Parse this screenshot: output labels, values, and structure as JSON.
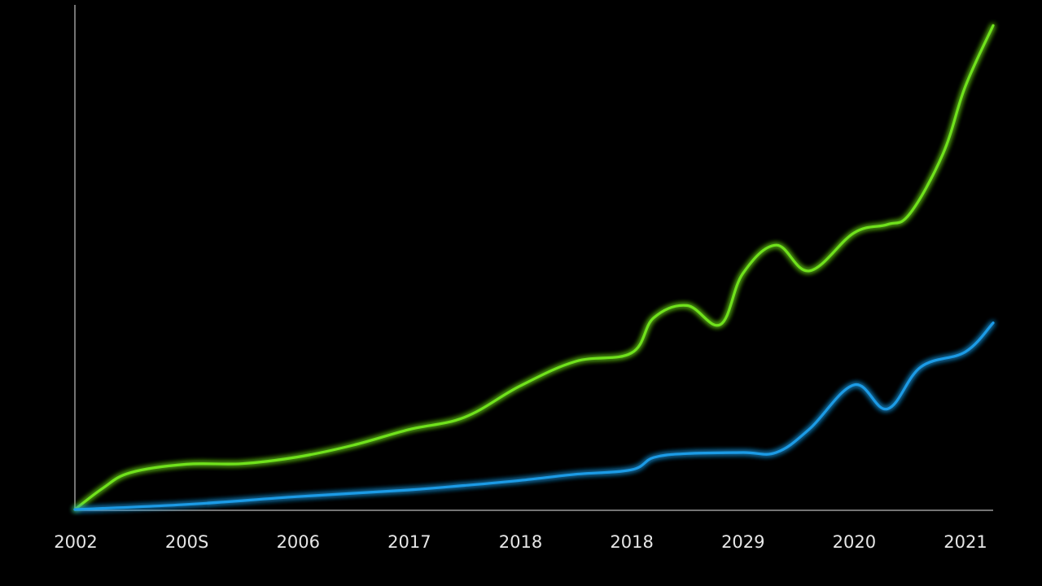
{
  "chart_data": {
    "type": "line",
    "categories": [
      "2002",
      "200S",
      "2006",
      "2017",
      "2018",
      "2018",
      "2029",
      "2020",
      "2021"
    ],
    "series": [
      {
        "color": "#6fe21f",
        "x": [
          0,
          0.25,
          0.5,
          1,
          1.5,
          2,
          2.5,
          3,
          3.5,
          4,
          4.5,
          5,
          5.2,
          5.5,
          5.8,
          6,
          6.3,
          6.6,
          7,
          7.3,
          7.5,
          7.8,
          8,
          8.25
        ],
        "y": [
          0,
          3.8,
          6.6,
          8.1,
          8.2,
          9.4,
          11.5,
          14.3,
          16.5,
          22.1,
          26.5,
          28.0,
          34.3,
          36.5,
          33.1,
          42.2,
          47.3,
          42.7,
          49.5,
          51.0,
          52.9,
          63.7,
          75.7,
          86.6
        ]
      },
      {
        "color": "#1e9be6",
        "x": [
          0,
          1,
          2,
          3,
          3.5,
          4,
          4.5,
          5,
          5.2,
          5.5,
          6,
          6.3,
          6.6,
          7,
          7.3,
          7.6,
          8,
          8.25
        ],
        "y": [
          0,
          0.9,
          2.3,
          3.5,
          4.3,
          5.2,
          6.3,
          7.1,
          9.3,
          10.0,
          10.2,
          10.2,
          14.4,
          22.3,
          18.0,
          25.5,
          28.2,
          33.4
        ]
      }
    ],
    "ylim": [
      0,
      90
    ],
    "xlim": [
      0,
      8.25
    ],
    "grid": false,
    "legend": "none",
    "title": "",
    "xlabel": "",
    "ylabel": "",
    "background": "#000000",
    "axis_color": "#9a9a9a"
  }
}
